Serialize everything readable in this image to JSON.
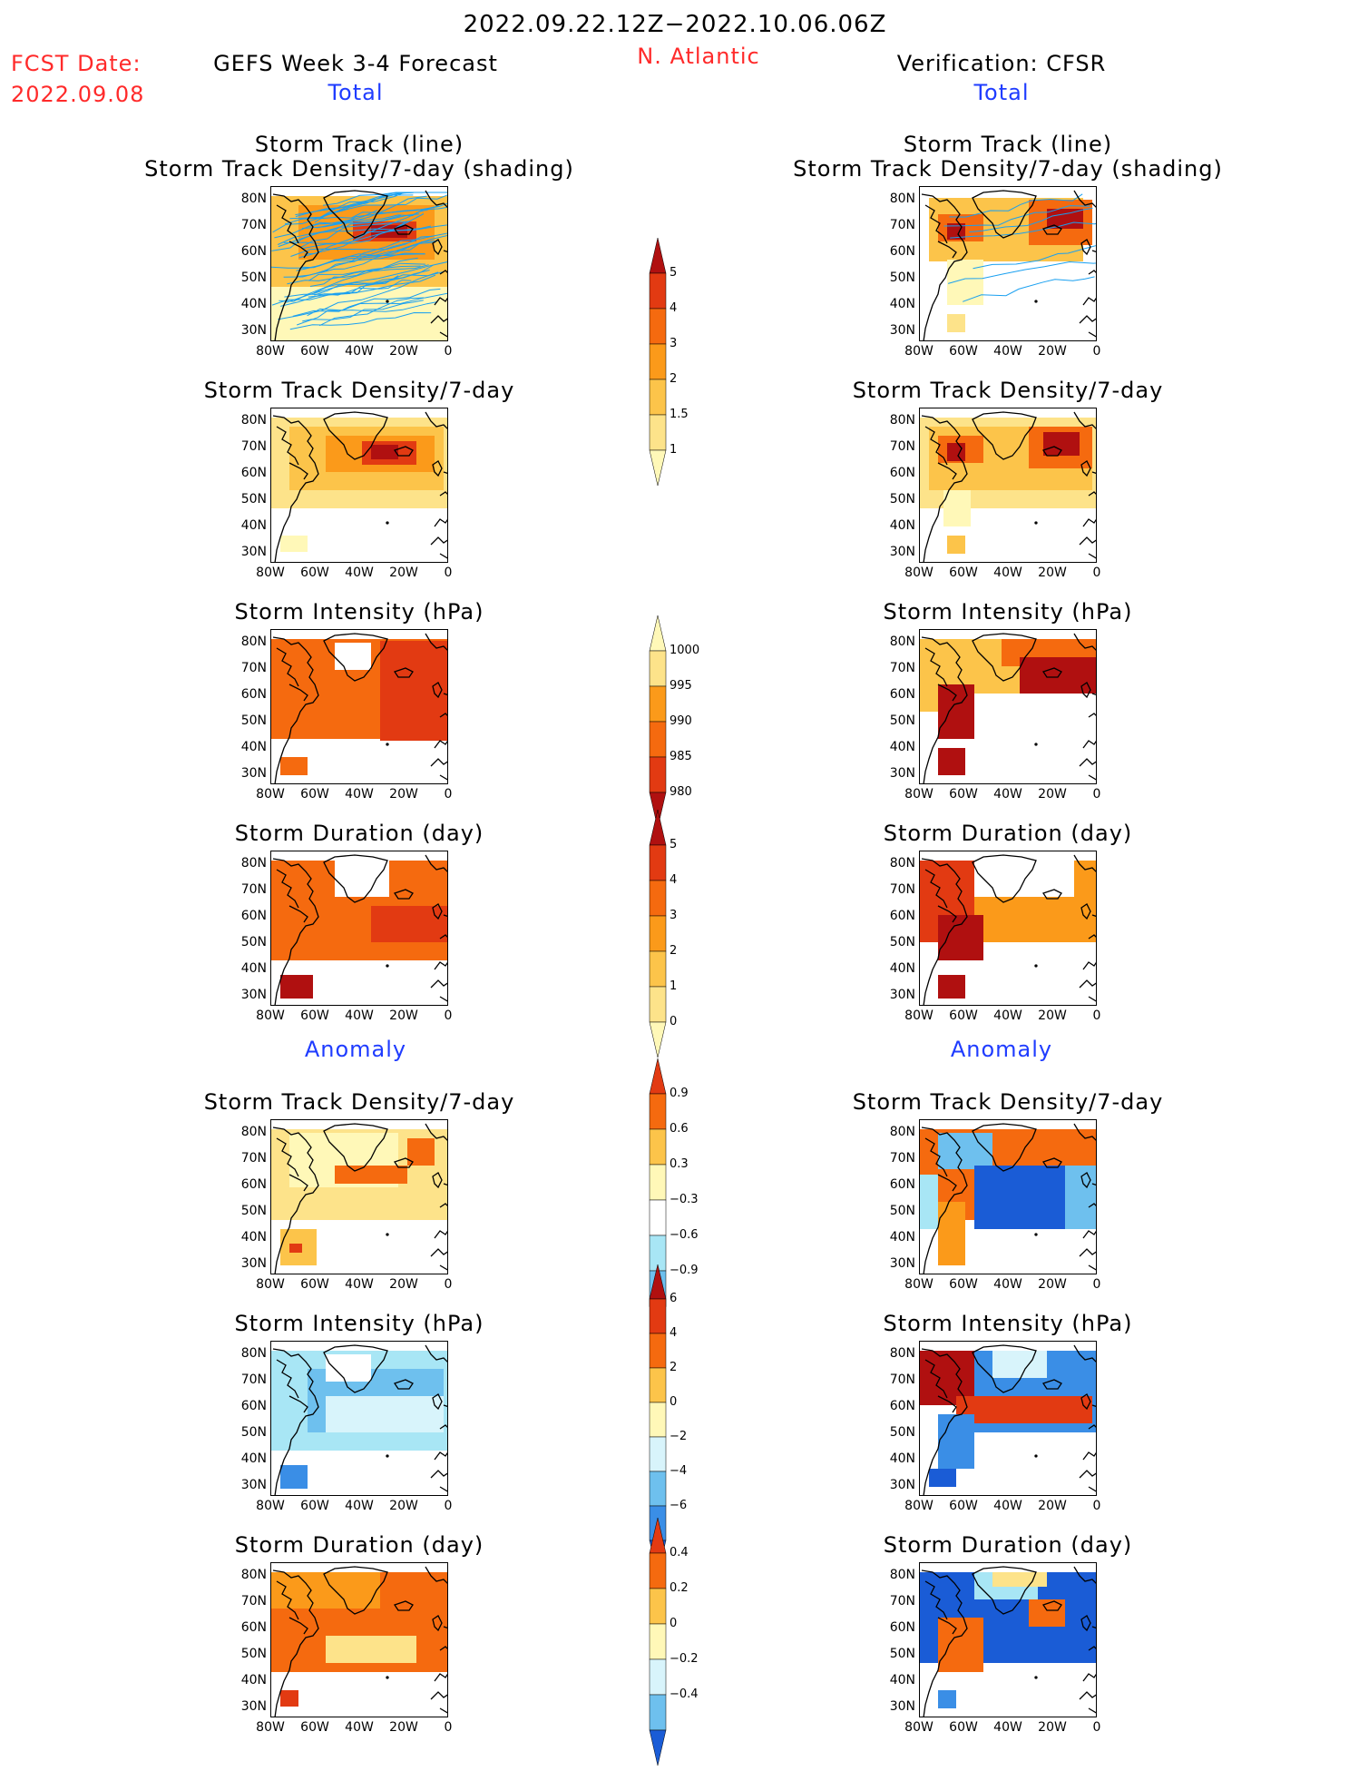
{
  "header": {
    "period": "2022.09.22.12Z−2022.10.06.06Z",
    "region": "N. Atlantic",
    "fcst_label": "FCST Date:",
    "fcst_date": "2022.09.08",
    "left_title": "GEFS Week 3-4 Forecast",
    "right_title": "Verification: CFSR",
    "left_sub": "Total",
    "right_sub": "Total"
  },
  "sections": {
    "anomaly_left": "Anomaly",
    "anomaly_right": "Anomaly"
  },
  "panels": {
    "track_line": "Storm Track (line)",
    "track_shading": "Storm Track Density/7-day (shading)",
    "density": "Storm Track Density/7-day",
    "intensity": "Storm Intensity (hPa)",
    "duration": "Storm Duration (day)"
  },
  "axes": {
    "lat_ticks": [
      "80N",
      "70N",
      "60N",
      "50N",
      "40N",
      "30N"
    ],
    "lon_ticks": [
      "80W",
      "60W",
      "40W",
      "20W",
      "0"
    ]
  },
  "colorbars": {
    "density_total": [
      "5",
      "4",
      "3",
      "2",
      "1.5",
      "1"
    ],
    "intensity_total": [
      "1000",
      "995",
      "990",
      "985",
      "980"
    ],
    "duration_total": [
      "5",
      "4",
      "3",
      "2",
      "1",
      "0"
    ],
    "density_anom": [
      "0.9",
      "0.6",
      "0.3",
      "−0.3",
      "−0.6",
      "−0.9"
    ],
    "intensity_anom": [
      "6",
      "4",
      "2",
      "0",
      "−2",
      "−4",
      "−6"
    ],
    "duration_anom": [
      "0.4",
      "0.2",
      "0",
      "−0.2",
      "−0.4"
    ]
  },
  "colors": {
    "title_red": "#ff2a2a",
    "title_blue": "#1f3cff",
    "warm": [
      "#fff8b8",
      "#fde38a",
      "#fcc44a",
      "#fb9a1a",
      "#f56a0f",
      "#e23a12",
      "#b01010"
    ],
    "cool": [
      "#d8f4fb",
      "#a8e6f5",
      "#6ec0ee",
      "#3a8ee6",
      "#1a5cd6"
    ]
  }
}
